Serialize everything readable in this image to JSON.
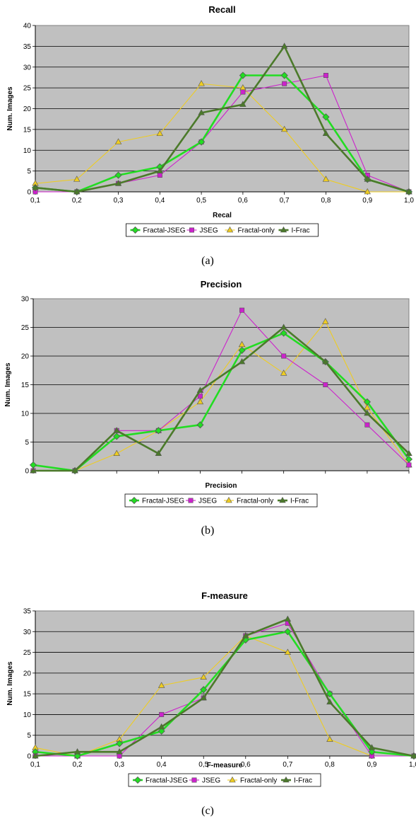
{
  "chart_data": [
    {
      "type": "line",
      "title": "Recall",
      "xlabel": "Recal",
      "ylabel": "Num. Images",
      "caption": "(a)",
      "categories": [
        "0,1",
        "0,2",
        "0,3",
        "0,4",
        "0,5",
        "0,6",
        "0,7",
        "0,8",
        "0,9",
        "1,0"
      ],
      "ylim": [
        0,
        40
      ],
      "yticks": [
        0,
        5,
        10,
        15,
        20,
        25,
        30,
        35,
        40
      ],
      "grid": true,
      "legend": "bottom",
      "series": [
        {
          "name": "Fractal-JSEG",
          "color": "#22dd22",
          "marker": "diamond",
          "values": [
            1,
            0,
            4,
            6,
            12,
            28,
            28,
            18,
            3,
            0
          ]
        },
        {
          "name": "JSEG",
          "color": "#cc22cc",
          "marker": "square",
          "values": [
            0,
            0,
            2,
            4,
            12,
            24,
            26,
            28,
            4,
            0
          ]
        },
        {
          "name": "Fractal-only",
          "color": "#eecc22",
          "marker": "triangle",
          "values": [
            2,
            3,
            12,
            14,
            26,
            25,
            15,
            3,
            0,
            0
          ]
        },
        {
          "name": "I-Frac",
          "color": "#4b7a2a",
          "marker": "triangle",
          "values": [
            1,
            0,
            2,
            5,
            19,
            21,
            35,
            14,
            3,
            0
          ]
        }
      ]
    },
    {
      "type": "line",
      "title": "Precision",
      "xlabel": "Precision",
      "ylabel": "Num. Images",
      "caption": "(b)",
      "categories": [
        "",
        "",
        "",
        "",
        "",
        "",
        "",
        "",
        "",
        ""
      ],
      "ylim": [
        0,
        30
      ],
      "yticks": [
        0,
        5,
        10,
        15,
        20,
        25,
        30
      ],
      "grid": true,
      "legend": "bottom",
      "series": [
        {
          "name": "Fractal-JSEG",
          "color": "#22dd22",
          "marker": "diamond",
          "values": [
            1,
            0,
            6,
            7,
            8,
            21,
            24,
            19,
            12,
            2
          ]
        },
        {
          "name": "JSEG",
          "color": "#cc22cc",
          "marker": "square",
          "values": [
            0,
            0,
            7,
            7,
            13,
            28,
            20,
            15,
            8,
            1
          ]
        },
        {
          "name": "Fractal-only",
          "color": "#eecc22",
          "marker": "triangle",
          "values": [
            0,
            0,
            3,
            7,
            12,
            22,
            17,
            26,
            11,
            1
          ]
        },
        {
          "name": "I-Frac",
          "color": "#4b7a2a",
          "marker": "triangle",
          "values": [
            0,
            0,
            7,
            3,
            14,
            19,
            25,
            19,
            10,
            3
          ]
        }
      ]
    },
    {
      "type": "line",
      "title": "F-measure",
      "xlabel": "F-measure",
      "ylabel": "Num. Images",
      "caption": "(c)",
      "categories": [
        "0,1",
        "0,2",
        "0,3",
        "0,4",
        "0,5",
        "0,6",
        "0,7",
        "0,8",
        "0,9",
        "1,0"
      ],
      "ylim": [
        0,
        35
      ],
      "yticks": [
        0,
        5,
        10,
        15,
        20,
        25,
        30,
        35
      ],
      "grid": true,
      "legend": "bottom",
      "series": [
        {
          "name": "Fractal-JSEG",
          "color": "#22dd22",
          "marker": "diamond",
          "values": [
            1,
            0,
            3,
            6,
            16,
            28,
            30,
            15,
            1,
            0
          ]
        },
        {
          "name": "JSEG",
          "color": "#cc22cc",
          "marker": "square",
          "values": [
            0,
            0,
            0,
            10,
            14,
            29,
            32,
            15,
            0,
            0
          ]
        },
        {
          "name": "Fractal-only",
          "color": "#eecc22",
          "marker": "triangle",
          "values": [
            2,
            0,
            4,
            17,
            19,
            29,
            25,
            4,
            0,
            0
          ]
        },
        {
          "name": "I-Frac",
          "color": "#4b7a2a",
          "marker": "triangle",
          "values": [
            0,
            1,
            1,
            7,
            14,
            29,
            33,
            13,
            2,
            0
          ]
        }
      ]
    }
  ]
}
